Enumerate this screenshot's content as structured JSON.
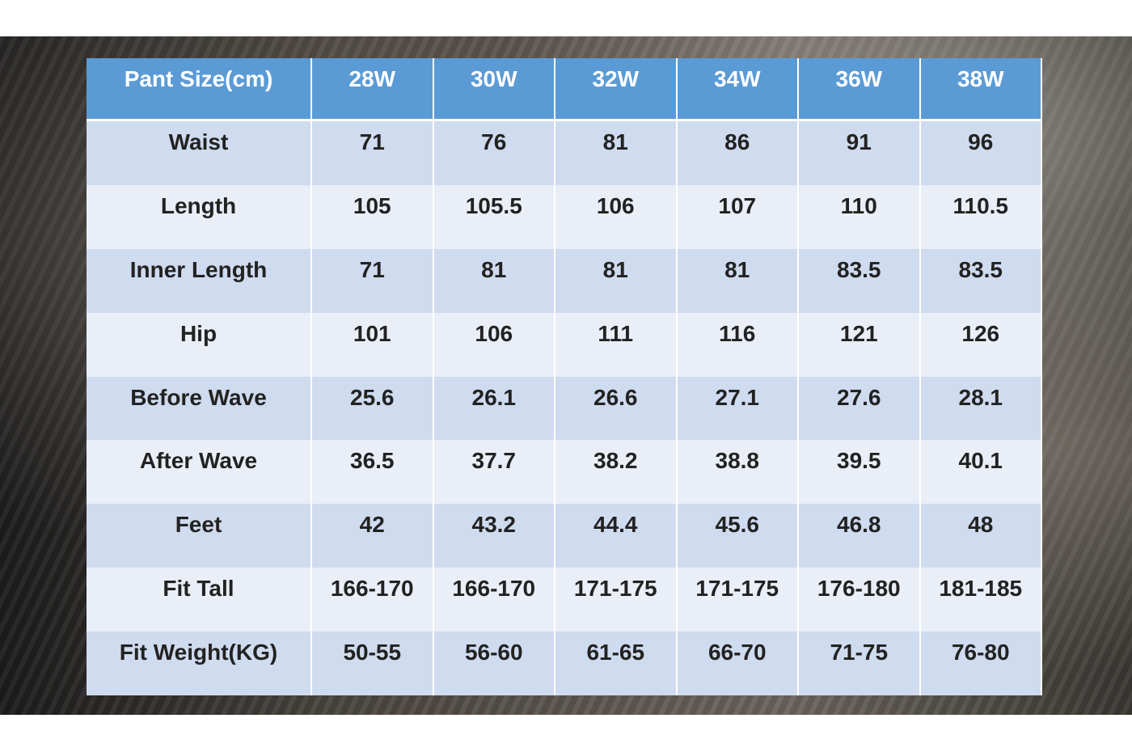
{
  "table": {
    "header": [
      "Pant Size(cm)",
      "28W",
      "30W",
      "32W",
      "34W",
      "36W",
      "38W"
    ],
    "rows": [
      [
        "Waist",
        "71",
        "76",
        "81",
        "86",
        "91",
        "96"
      ],
      [
        "Length",
        "105",
        "105.5",
        "106",
        "107",
        "110",
        "110.5"
      ],
      [
        "Inner Length",
        "71",
        "81",
        "81",
        "81",
        "83.5",
        "83.5"
      ],
      [
        "Hip",
        "101",
        "106",
        "111",
        "116",
        "121",
        "126"
      ],
      [
        "Before Wave",
        "25.6",
        "26.1",
        "26.6",
        "27.1",
        "27.6",
        "28.1"
      ],
      [
        "After Wave",
        "36.5",
        "37.7",
        "38.2",
        "38.8",
        "39.5",
        "40.1"
      ],
      [
        "Feet",
        "42",
        "43.2",
        "44.4",
        "45.6",
        "46.8",
        "48"
      ],
      [
        "Fit Tall",
        "166-170",
        "166-170",
        "171-175",
        "171-175",
        "176-180",
        "181-185"
      ],
      [
        "Fit Weight(KG)",
        "50-55",
        "56-60",
        "61-65",
        "66-70",
        "71-75",
        "76-80"
      ]
    ]
  }
}
